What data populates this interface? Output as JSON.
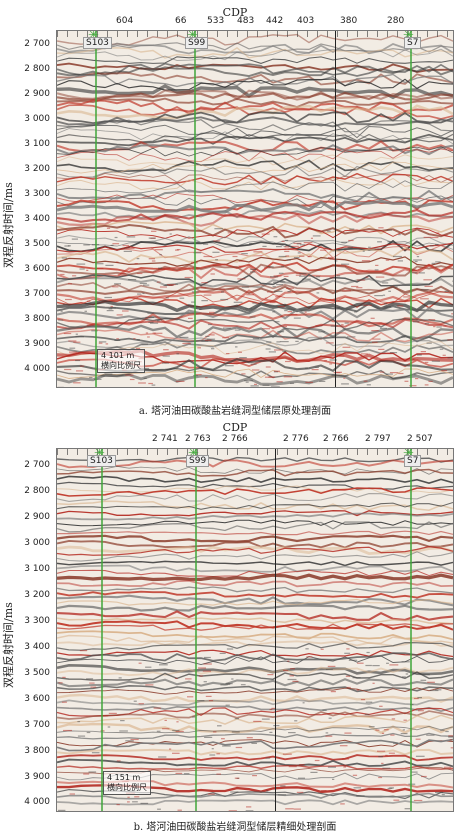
{
  "panel_a": {
    "cdp_label": "CDP",
    "y_axis_label": "双程反射时间/ms",
    "cdp_ticks": [
      "604",
      "66",
      "533",
      "483",
      "442",
      "403",
      "380",
      "280"
    ],
    "time_ticks": [
      "2 700",
      "2 800",
      "2 900",
      "3 000",
      "3 100",
      "3 200",
      "3 300",
      "3 400",
      "3 500",
      "3 600",
      "3 700",
      "3 800",
      "3 900",
      "4 000"
    ],
    "wells": [
      "S103",
      "S99",
      "S7"
    ],
    "scale_text": "4 101 m",
    "scale_sub": "横向比例尺",
    "caption": "a. 塔河油田碳酸盐岩缝洞型储层原处理剖面"
  },
  "panel_b": {
    "cdp_label": "CDP",
    "y_axis_label": "双程反射时间/ms",
    "cdp_ticks": [
      "2 741",
      "2 763",
      "2 766",
      "2 776",
      "2 766",
      "2 797",
      "2 507"
    ],
    "time_ticks": [
      "2 700",
      "2 800",
      "2 900",
      "3 000",
      "3 100",
      "3 200",
      "3 300",
      "3 400",
      "3 500",
      "3 600",
      "3 700",
      "3 800",
      "3 900",
      "4 000"
    ],
    "wells": [
      "S103",
      "S99",
      "S7"
    ],
    "scale_text": "4 151 m",
    "scale_sub": "横向比例尺",
    "caption": "b. 塔河油田碳酸盐岩缝洞型储层精细处理剖面"
  }
}
